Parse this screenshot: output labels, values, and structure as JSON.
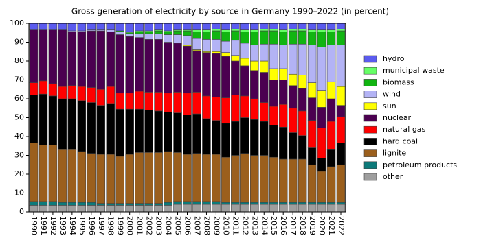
{
  "chart_data": {
    "type": "stacked-bar",
    "title": "Gross generation of electricity by source in Germany 1990–2022 (in percent)",
    "categories": [
      "1990",
      "1991",
      "1992",
      "1993",
      "1994",
      "1995",
      "1996",
      "1997",
      "1998",
      "1999",
      "2000",
      "2001",
      "2002",
      "2003",
      "2004",
      "2005",
      "2006",
      "2007",
      "2008",
      "2009",
      "2010",
      "2011",
      "2012",
      "2013",
      "2014",
      "2015",
      "2016",
      "2017",
      "2018",
      "2019",
      "2020",
      "2021",
      "2022"
    ],
    "ylim": [
      0,
      100
    ],
    "yticks": [
      0,
      10,
      20,
      30,
      40,
      50,
      60,
      70,
      80,
      90,
      100
    ],
    "legend": "right",
    "series": [
      {
        "name": "other",
        "color": "#9e9e9e",
        "values": [
          3.5,
          3.5,
          3.5,
          3.5,
          3.5,
          3.5,
          3.5,
          3.5,
          3.5,
          3.5,
          3.5,
          3.5,
          3.5,
          3.5,
          3.5,
          4,
          4,
          4,
          4,
          4,
          4,
          4,
          4,
          4,
          4,
          4,
          4,
          4,
          4,
          4,
          4,
          4,
          4
        ]
      },
      {
        "name": "petroleum products",
        "color": "#0c7a7a",
        "values": [
          2,
          2,
          2,
          1.5,
          1.5,
          1.5,
          1.5,
          1,
          1,
          1,
          1,
          1,
          1,
          1,
          1.5,
          1.5,
          1.5,
          1.5,
          1.5,
          1.5,
          1,
          1,
          1,
          1,
          1,
          1,
          1,
          1,
          1,
          1,
          1,
          1,
          1
        ]
      },
      {
        "name": "lignite",
        "color": "#9b5f1d",
        "values": [
          31,
          30,
          30,
          28,
          28,
          27,
          26,
          26,
          26,
          25,
          26,
          27,
          27,
          27,
          27,
          26,
          25,
          25.5,
          25,
          25,
          24,
          25,
          26,
          25,
          25,
          24,
          23,
          23,
          23,
          20,
          16.5,
          19,
          20
        ]
      },
      {
        "name": "hard coal",
        "color": "#000000",
        "values": [
          25.5,
          27,
          26,
          27,
          27,
          27,
          27,
          26,
          27,
          25,
          24,
          23,
          22.5,
          22,
          21,
          21,
          21,
          21,
          19,
          18,
          18,
          18,
          19,
          19,
          18,
          17,
          17,
          14,
          12.5,
          9,
          7,
          9,
          11.5
        ]
      },
      {
        "name": "natural gas",
        "color": "#ff0000",
        "values": [
          6.5,
          7,
          6.5,
          6.5,
          7,
          7.5,
          8,
          8.5,
          9,
          8.5,
          8.5,
          9.5,
          9.5,
          10,
          10,
          11,
          11.5,
          11.5,
          12,
          12.5,
          13.5,
          14,
          11.5,
          11,
          10,
          10,
          12,
          13,
          13,
          14.5,
          16,
          15,
          14
        ]
      },
      {
        "name": "nuclear",
        "color": "#4b0050",
        "values": [
          28,
          27,
          28.5,
          30,
          28.5,
          29,
          30,
          31,
          29,
          31,
          30,
          28.5,
          28,
          28,
          27,
          26,
          25,
          22,
          23,
          23,
          22,
          18,
          16,
          15,
          16,
          14,
          13,
          12,
          12,
          12,
          11,
          12,
          6
        ]
      },
      {
        "name": "sun",
        "color": "#ffff00",
        "values": [
          0,
          0,
          0,
          0,
          0,
          0,
          0,
          0,
          0,
          0,
          0,
          0,
          0,
          0,
          0,
          0,
          0.5,
          0.5,
          0.5,
          1,
          2,
          3,
          4,
          5,
          6,
          6,
          6,
          6,
          7,
          8,
          9,
          9,
          10
        ]
      },
      {
        "name": "wind",
        "color": "#b3b3f5",
        "values": [
          0,
          0,
          0,
          0,
          0.5,
          0.5,
          0.5,
          0.5,
          1,
          1.5,
          1.5,
          2,
          3,
          3,
          4,
          4.5,
          5,
          6,
          6.5,
          6.5,
          6,
          8,
          8,
          8.5,
          9,
          13,
          12.5,
          16,
          16.5,
          20,
          23,
          19.5,
          22
        ]
      },
      {
        "name": "biomass",
        "color": "#11b511",
        "values": [
          0,
          0,
          0,
          0,
          0,
          0,
          0,
          0,
          0,
          0.5,
          0.5,
          1,
          1,
          1.5,
          1.5,
          2,
          2.5,
          3.5,
          4,
          4.5,
          5,
          5,
          6,
          7,
          7,
          7,
          7,
          7,
          7,
          7,
          8,
          7,
          7.5
        ]
      },
      {
        "name": "municipal waste",
        "color": "#66ff66",
        "values": [
          0,
          0,
          0,
          0,
          0,
          0,
          0,
          0,
          0,
          0,
          0.5,
          0.5,
          0.5,
          0.5,
          0.5,
          0.5,
          0.5,
          1,
          1,
          1,
          1,
          1,
          1,
          1,
          1,
          1,
          1,
          1,
          1,
          1,
          1,
          1,
          1
        ]
      },
      {
        "name": "hydro",
        "color": "#5b5bef",
        "values": [
          3.5,
          3.5,
          3.5,
          3.5,
          4,
          4,
          3.5,
          3.5,
          3.5,
          4,
          4.5,
          4,
          4,
          3.5,
          4,
          3.5,
          3.5,
          3.5,
          3.5,
          3,
          3.5,
          3,
          3.5,
          3.5,
          3,
          3,
          3.5,
          3,
          3,
          3.5,
          3.5,
          3.5,
          3
        ]
      }
    ]
  }
}
